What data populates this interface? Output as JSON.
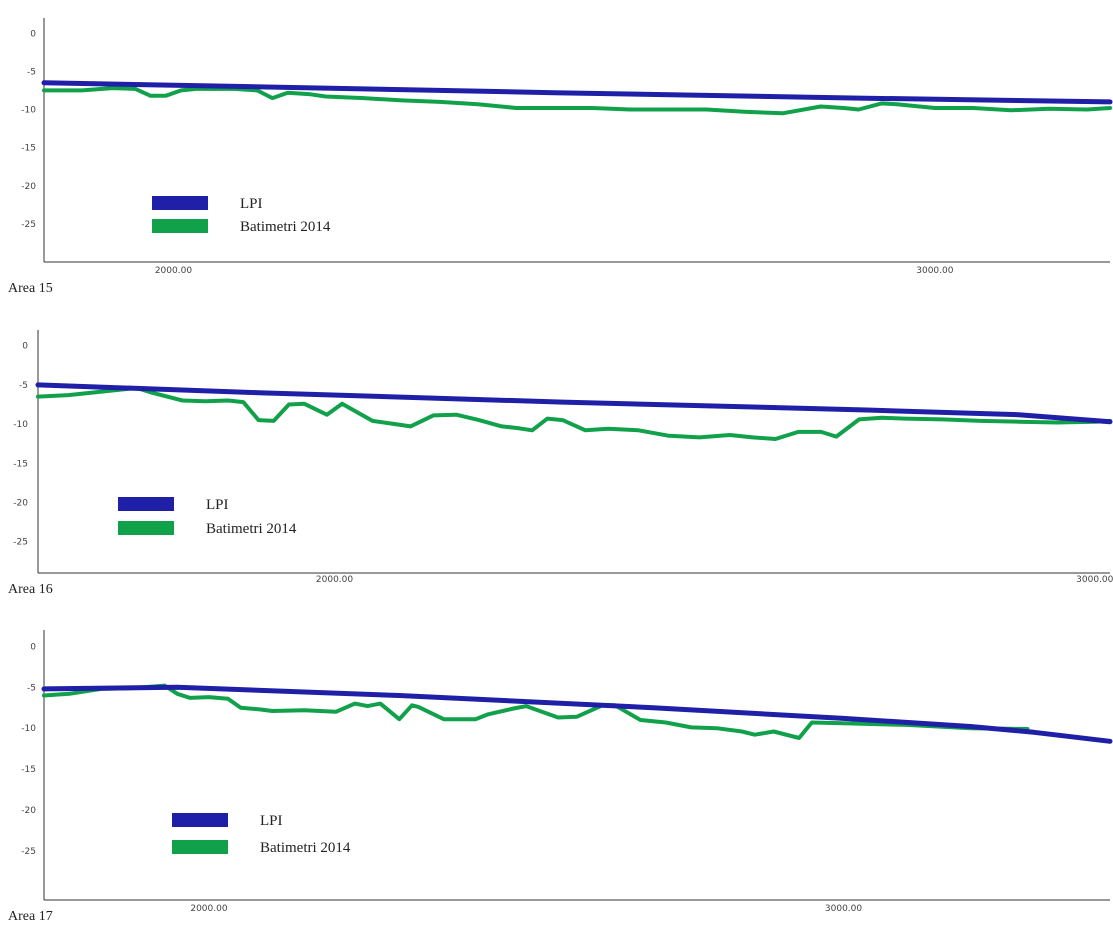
{
  "colors": {
    "lpi": "#1f1fa8",
    "batimetri": "#12a14b",
    "axis": "#333333"
  },
  "chart_data": [
    {
      "type": "line",
      "title": "Area 15",
      "xlabel": "",
      "ylabel": "",
      "xlim": [
        1830,
        3230
      ],
      "ylim": [
        -30,
        2
      ],
      "x_ticks": [
        {
          "value": 2000,
          "label": "2000.00"
        },
        {
          "value": 3000,
          "label": "3000.00"
        }
      ],
      "y_ticks": [
        {
          "value": 0,
          "label": "0"
        },
        {
          "value": -5,
          "label": "-5"
        },
        {
          "value": -10,
          "label": "-10"
        },
        {
          "value": -15,
          "label": "-15"
        },
        {
          "value": -20,
          "label": "-20"
        },
        {
          "value": -25,
          "label": "-25"
        }
      ],
      "legend": "lower-left",
      "series": [
        {
          "name": "LPI",
          "x": [
            1830,
            2100,
            2500,
            2900,
            3230
          ],
          "y": [
            -6.5,
            -7,
            -7.8,
            -8.5,
            -9
          ]
        },
        {
          "name": "Batimetri 2014",
          "x": [
            1830,
            1880,
            1920,
            1950,
            1970,
            1990,
            2010,
            2030,
            2050,
            2080,
            2110,
            2130,
            2150,
            2180,
            2200,
            2250,
            2300,
            2350,
            2400,
            2450,
            2500,
            2550,
            2600,
            2650,
            2700,
            2750,
            2800,
            2850,
            2880,
            2900,
            2930,
            2950,
            2970,
            3000,
            3050,
            3100,
            3150,
            3200,
            3230
          ],
          "y": [
            -7.5,
            -7.5,
            -7.2,
            -7.3,
            -8.2,
            -8.2,
            -7.5,
            -7.3,
            -7.3,
            -7.3,
            -7.5,
            -8.5,
            -7.8,
            -8,
            -8.3,
            -8.5,
            -8.8,
            -9,
            -9.3,
            -9.8,
            -9.8,
            -9.8,
            -10,
            -10,
            -10,
            -10.3,
            -10.5,
            -9.6,
            -9.8,
            -10,
            -9.2,
            -9.3,
            -9.5,
            -9.8,
            -9.8,
            -10.1,
            -9.9,
            -10,
            -9.8
          ]
        }
      ]
    },
    {
      "type": "line",
      "title": "Area 16",
      "xlabel": "",
      "ylabel": "",
      "xlim": [
        1610,
        3020
      ],
      "ylim": [
        -29,
        2
      ],
      "x_ticks": [
        {
          "value": 2000,
          "label": "2000.00"
        },
        {
          "value": 3000,
          "label": "3000.00"
        }
      ],
      "y_ticks": [
        {
          "value": 0,
          "label": "0"
        },
        {
          "value": -5,
          "label": "-5"
        },
        {
          "value": -10,
          "label": "-10"
        },
        {
          "value": -15,
          "label": "-15"
        },
        {
          "value": -20,
          "label": "-20"
        },
        {
          "value": -25,
          "label": "-25"
        }
      ],
      "legend": "lower-left",
      "series": [
        {
          "name": "LPI",
          "x": [
            1610,
            1900,
            2300,
            2700,
            2900,
            3020
          ],
          "y": [
            -5,
            -6,
            -7.2,
            -8.2,
            -8.8,
            -9.7
          ]
        },
        {
          "name": "Batimetri 2014",
          "x": [
            1610,
            1650,
            1700,
            1740,
            1760,
            1800,
            1830,
            1860,
            1880,
            1900,
            1920,
            1940,
            1960,
            1990,
            2010,
            2050,
            2080,
            2100,
            2130,
            2160,
            2190,
            2220,
            2240,
            2260,
            2280,
            2300,
            2330,
            2360,
            2400,
            2440,
            2480,
            2520,
            2550,
            2580,
            2610,
            2640,
            2660,
            2690,
            2720,
            2750,
            2800,
            2850,
            2900,
            2950,
            3000,
            3020
          ],
          "y": [
            -6.5,
            -6.3,
            -5.8,
            -5.4,
            -6,
            -7,
            -7.1,
            -7,
            -7.2,
            -9.5,
            -9.6,
            -7.5,
            -7.4,
            -8.8,
            -7.4,
            -9.6,
            -10,
            -10.3,
            -8.9,
            -8.8,
            -9.5,
            -10.3,
            -10.5,
            -10.8,
            -9.3,
            -9.5,
            -10.8,
            -10.6,
            -10.8,
            -11.5,
            -11.7,
            -11.4,
            -11.7,
            -11.9,
            -11,
            -11,
            -11.6,
            -9.4,
            -9.2,
            -9.3,
            -9.4,
            -9.6,
            -9.7,
            -9.8,
            -9.7,
            -9.6
          ]
        }
      ]
    },
    {
      "type": "line",
      "title": "Area 17",
      "xlabel": "",
      "ylabel": "",
      "xlim": [
        1740,
        3420
      ],
      "ylim": [
        -31,
        2
      ],
      "x_ticks": [
        {
          "value": 2000,
          "label": "2000.00"
        },
        {
          "value": 3000,
          "label": "3000.00"
        }
      ],
      "y_ticks": [
        {
          "value": 0,
          "label": "0"
        },
        {
          "value": -5,
          "label": "-5"
        },
        {
          "value": -10,
          "label": "-10"
        },
        {
          "value": -15,
          "label": "-15"
        },
        {
          "value": -20,
          "label": "-20"
        },
        {
          "value": -25,
          "label": "-25"
        }
      ],
      "legend": "lower-left",
      "series": [
        {
          "name": "LPI",
          "x": [
            1740,
            1950,
            2300,
            2700,
            3000,
            3200,
            3300,
            3420
          ],
          "y": [
            -5.2,
            -5,
            -6,
            -7.5,
            -8.8,
            -9.8,
            -10.5,
            -11.6
          ]
        },
        {
          "name": "Batimetri 2014",
          "x": [
            1740,
            1780,
            1830,
            1880,
            1930,
            1950,
            1970,
            2000,
            2030,
            2050,
            2080,
            2100,
            2150,
            2200,
            2230,
            2250,
            2270,
            2300,
            2320,
            2330,
            2370,
            2420,
            2440,
            2480,
            2500,
            2550,
            2580,
            2620,
            2640,
            2680,
            2720,
            2760,
            2800,
            2840,
            2860,
            2890,
            2930,
            2950,
            3000,
            3100,
            3200,
            3290
          ],
          "y": [
            -6,
            -5.8,
            -5.2,
            -5.1,
            -4.8,
            -5.8,
            -6.3,
            -6.2,
            -6.4,
            -7.5,
            -7.7,
            -7.9,
            -7.8,
            -8,
            -7,
            -7.3,
            -7,
            -8.9,
            -7.2,
            -7.4,
            -8.9,
            -8.9,
            -8.3,
            -7.6,
            -7.3,
            -8.7,
            -8.6,
            -7.2,
            -7.2,
            -9,
            -9.3,
            -9.9,
            -10,
            -10.4,
            -10.8,
            -10.4,
            -11.2,
            -9.3,
            -9.4,
            -9.6,
            -10,
            -10.1
          ]
        }
      ]
    }
  ]
}
